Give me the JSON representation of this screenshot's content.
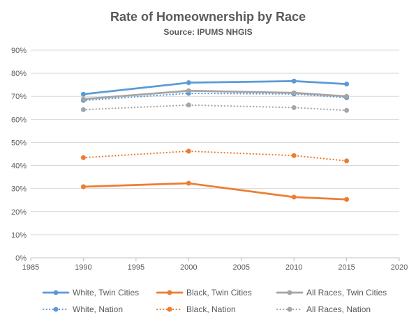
{
  "chart_data": {
    "type": "line",
    "title": "Rate of Homeownership by Race",
    "subtitle": "Source: IPUMS NHGIS",
    "xlabel": "",
    "ylabel": "",
    "xlim": [
      1985,
      2020
    ],
    "ylim": [
      0,
      90
    ],
    "x_ticks": [
      "1985",
      "1990",
      "1995",
      "2000",
      "2005",
      "2010",
      "2015",
      "2020"
    ],
    "y_ticks": [
      "0%",
      "10%",
      "20%",
      "30%",
      "40%",
      "50%",
      "60%",
      "70%",
      "80%",
      "90%"
    ],
    "grid": "horizontal",
    "legend_position": "bottom",
    "x": [
      1990,
      2000,
      2010,
      2015
    ],
    "series": [
      {
        "name": "White, Twin Cities",
        "values": [
          70.9,
          75.9,
          76.6,
          75.3
        ],
        "color": "#5B9BD5",
        "style": "solid"
      },
      {
        "name": "Black, Twin Cities",
        "values": [
          30.8,
          32.3,
          26.3,
          25.3
        ],
        "color": "#ED7D31",
        "style": "solid"
      },
      {
        "name": "All Races, Twin Cities",
        "values": [
          68.8,
          72.4,
          71.5,
          70.0
        ],
        "color": "#A5A5A5",
        "style": "solid"
      },
      {
        "name": "White, Nation",
        "values": [
          68.2,
          71.3,
          71.0,
          69.4
        ],
        "color": "#5B9BD5",
        "style": "dotted"
      },
      {
        "name": "Black, Nation",
        "values": [
          43.4,
          46.2,
          44.3,
          42.0
        ],
        "color": "#ED7D31",
        "style": "dotted"
      },
      {
        "name": "All Races, Nation",
        "values": [
          64.2,
          66.2,
          65.1,
          63.9
        ],
        "color": "#A5A5A5",
        "style": "dotted"
      }
    ]
  }
}
